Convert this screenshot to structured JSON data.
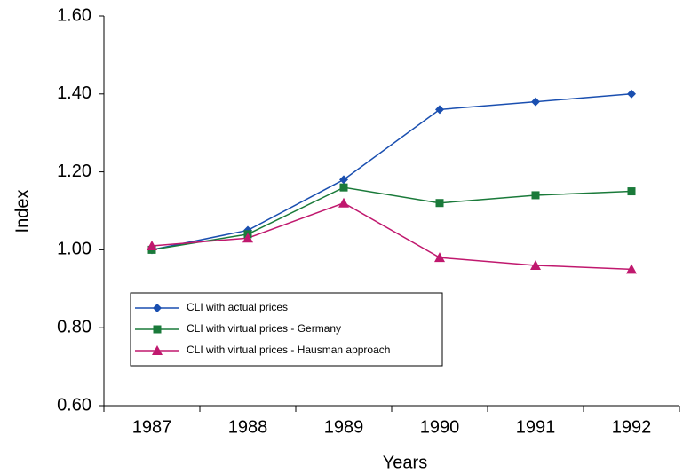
{
  "chart_data": {
    "type": "line",
    "xlabel": "Years",
    "ylabel": "Index",
    "categories": [
      "1987",
      "1988",
      "1989",
      "1990",
      "1991",
      "1992"
    ],
    "series": [
      {
        "name": "CLI with actual prices",
        "color": "#1a4fb0",
        "marker": "diamond",
        "values": [
          1.0,
          1.05,
          1.18,
          1.36,
          1.38,
          1.4
        ]
      },
      {
        "name": "CLI with virtual prices - Germany",
        "color": "#1a7a3a",
        "marker": "square",
        "values": [
          1.0,
          1.04,
          1.16,
          1.12,
          1.14,
          1.15
        ]
      },
      {
        "name": "CLI with virtual prices - Hausman approach",
        "color": "#c0186e",
        "marker": "triangle",
        "values": [
          1.01,
          1.03,
          1.12,
          0.98,
          0.96,
          0.95
        ]
      }
    ],
    "ylim": [
      0.6,
      1.6
    ],
    "yticks": [
      {
        "value": 0.6,
        "label": "0.60"
      },
      {
        "value": 0.8,
        "label": "0.80"
      },
      {
        "value": 1.0,
        "label": "1.00"
      },
      {
        "value": 1.2,
        "label": "1.20"
      },
      {
        "value": 1.4,
        "label": "1.40"
      },
      {
        "value": 1.6,
        "label": "1.60"
      }
    ],
    "grid": false
  }
}
